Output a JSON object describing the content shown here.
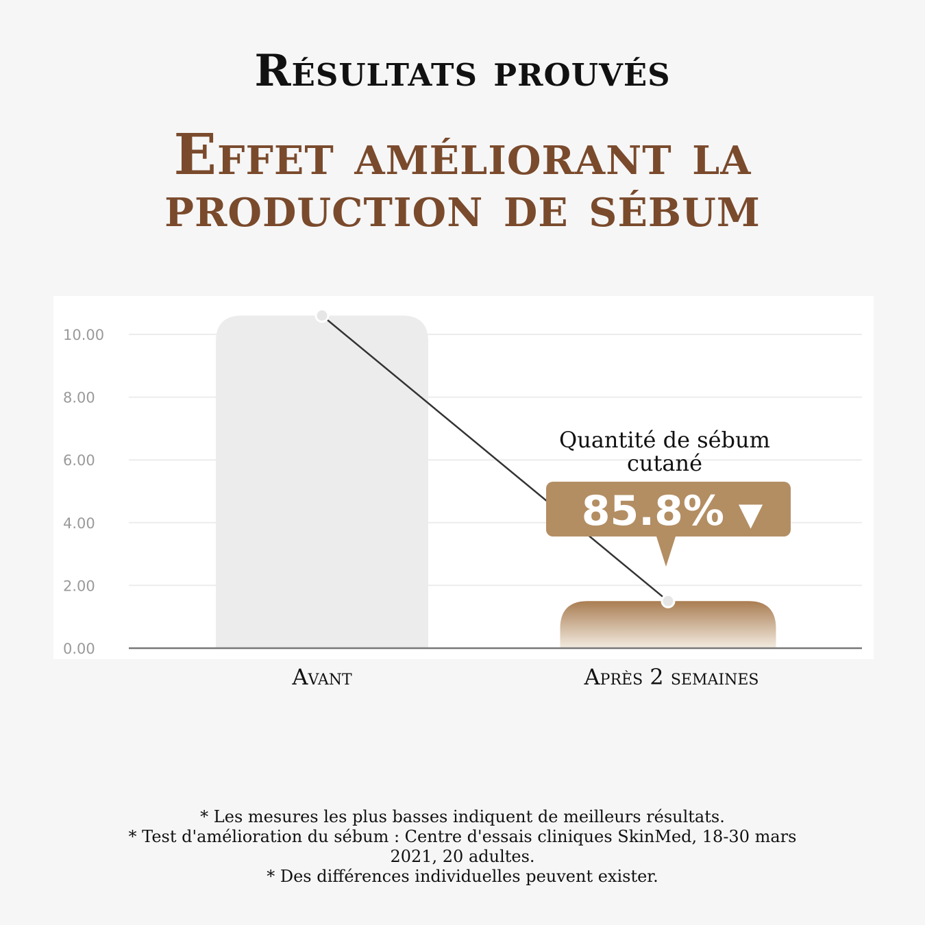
{
  "header": {
    "subtitle": "Résultats prouvés",
    "title_line1": "Effet améliorant la",
    "title_line2": "production de sébum"
  },
  "callout": {
    "label": "Quantité de sébum cutané",
    "value": "85.8%",
    "arrow": "▼"
  },
  "colors": {
    "bar_before": "#ececec",
    "bar_after": "#b08a60",
    "badge": "#b38e63",
    "title": "#7a4a2c"
  },
  "chart_data": {
    "type": "bar",
    "categories": [
      "Avant",
      "Après 2 semaines"
    ],
    "values": [
      10.6,
      1.5
    ],
    "series": [
      {
        "values": [
          10.6,
          1.5
        ]
      }
    ],
    "ylim": [
      0,
      10
    ],
    "yticks": [
      "10.00",
      "8.00",
      "6.00",
      "4.00",
      "2.00",
      "0.00"
    ],
    "grid": true,
    "overlay": "line connecting bar tops",
    "xlabel": "",
    "ylabel": ""
  },
  "footnotes": [
    "* Les mesures les plus basses indiquent de meilleurs résultats.",
    "* Test d'amélioration du sébum : Centre d'essais cliniques SkinMed, 18-30 mars 2021, 20 adultes.",
    "* Des différences individuelles peuvent exister."
  ]
}
